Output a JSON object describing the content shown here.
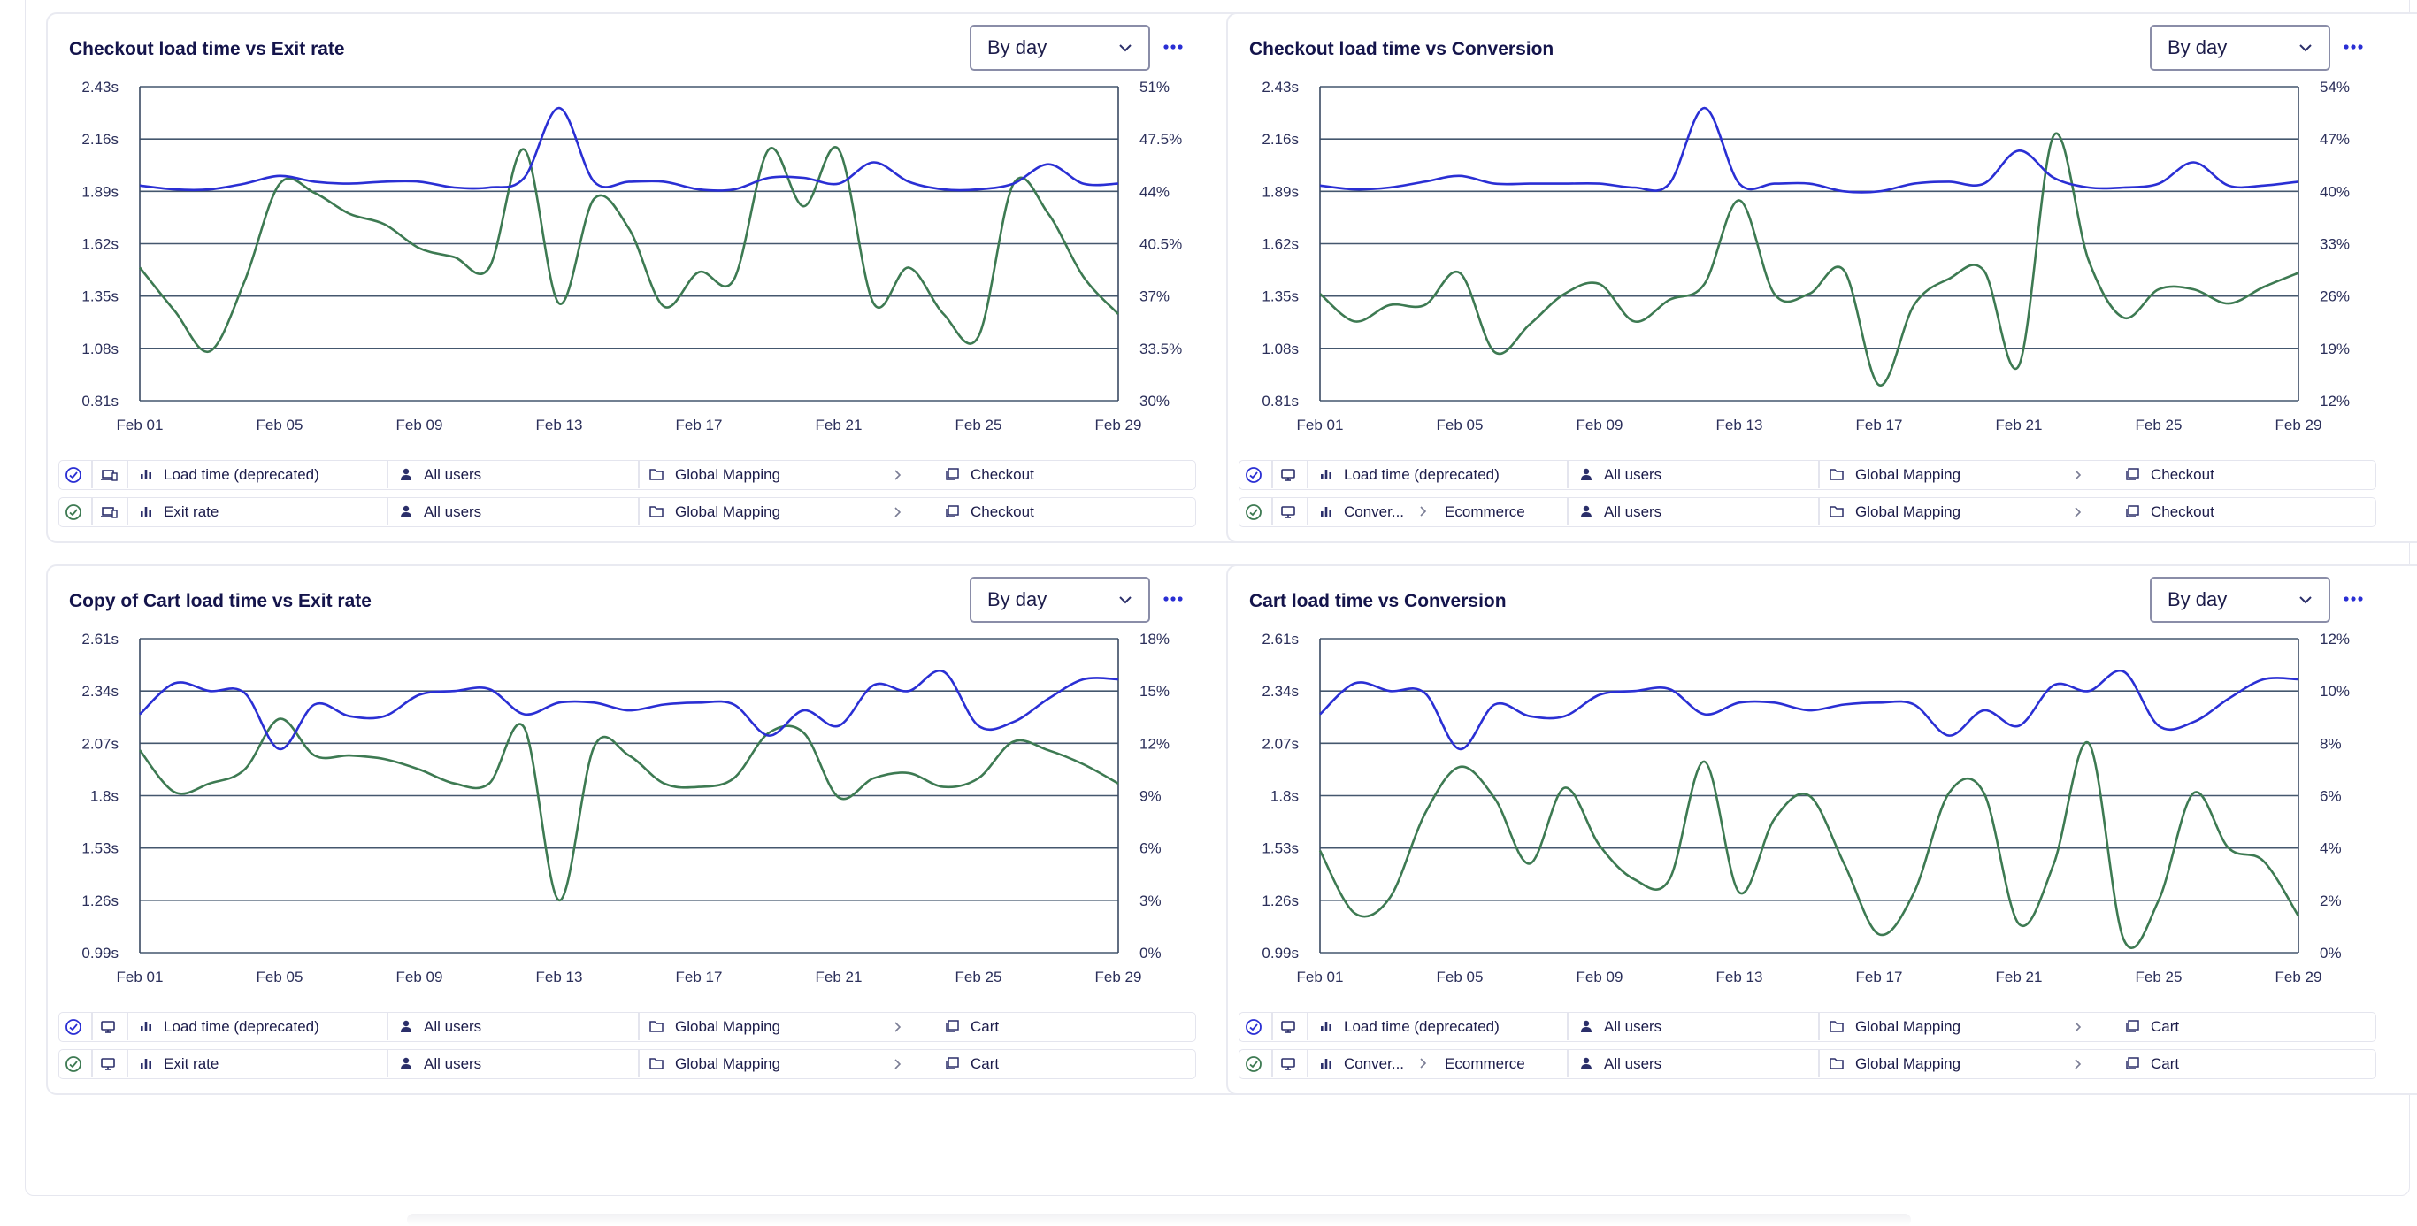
{
  "colors": {
    "blue": "#2a2fd4",
    "green": "#3d7a52",
    "grid": "#44576e",
    "axis": "#3a4a62"
  },
  "panels": [
    {
      "title": "Checkout load time vs Exit rate",
      "dropdown": "By day",
      "legend": [
        {
          "status": "blue",
          "device": "multi-device-icon",
          "metric": "Load time (deprecated)",
          "segment": "All users",
          "mapping": "Global Mapping",
          "page": "Checkout"
        },
        {
          "status": "green",
          "device": "multi-device-icon",
          "metric": "Exit rate",
          "segment": "All users",
          "mapping": "Global Mapping",
          "page": "Checkout"
        }
      ]
    },
    {
      "title": "Checkout load time vs Conversion",
      "dropdown": "By day",
      "legend": [
        {
          "status": "blue",
          "device": "desktop-icon",
          "metric": "Load time (deprecated)",
          "segment": "All users",
          "mapping": "Global Mapping",
          "page": "Checkout"
        },
        {
          "status": "green",
          "device": "desktop-icon",
          "metric": "Conver...",
          "goal": "Ecommerce",
          "segment": "All users",
          "mapping": "Global Mapping",
          "page": "Checkout"
        }
      ]
    },
    {
      "title": "Copy of Cart load time vs Exit rate",
      "dropdown": "By day",
      "legend": [
        {
          "status": "blue",
          "device": "desktop-icon",
          "metric": "Load time (deprecated)",
          "segment": "All users",
          "mapping": "Global Mapping",
          "page": "Cart"
        },
        {
          "status": "green",
          "device": "desktop-icon",
          "metric": "Exit rate",
          "segment": "All users",
          "mapping": "Global Mapping",
          "page": "Cart"
        }
      ]
    },
    {
      "title": "Cart load time vs Conversion",
      "dropdown": "By day",
      "legend": [
        {
          "status": "blue",
          "device": "desktop-icon",
          "metric": "Load time (deprecated)",
          "segment": "All users",
          "mapping": "Global Mapping",
          "page": "Cart"
        },
        {
          "status": "green",
          "device": "desktop-icon",
          "metric": "Conver...",
          "goal": "Ecommerce",
          "segment": "All users",
          "mapping": "Global Mapping",
          "page": "Cart"
        }
      ]
    }
  ],
  "chart_data": [
    {
      "type": "line",
      "title": "Checkout load time vs Exit rate",
      "x_ticks": [
        "Feb 01",
        "Feb 05",
        "Feb 09",
        "Feb 13",
        "Feb 17",
        "Feb 21",
        "Feb 25",
        "Feb 29"
      ],
      "x": [
        1,
        2,
        3,
        4,
        5,
        6,
        7,
        8,
        9,
        10,
        11,
        12,
        13,
        14,
        15,
        16,
        17,
        18,
        19,
        20,
        21,
        22,
        23,
        24,
        25,
        26,
        27,
        28,
        29
      ],
      "y_left": {
        "ticks": [
          "0.81s",
          "1.08s",
          "1.35s",
          "1.62s",
          "1.89s",
          "2.16s",
          "2.43s"
        ],
        "ylim": [
          0.81,
          2.43
        ]
      },
      "y_right": {
        "ticks": [
          "30%",
          "33.5%",
          "37%",
          "40.5%",
          "44%",
          "47.5%",
          "51%"
        ],
        "ylim": [
          30,
          51
        ]
      },
      "series": [
        {
          "name": "Load time (deprecated)",
          "axis": "left",
          "color": "blue",
          "values": [
            1.92,
            1.9,
            1.9,
            1.93,
            1.97,
            1.94,
            1.93,
            1.94,
            1.94,
            1.91,
            1.91,
            1.96,
            2.32,
            1.94,
            1.94,
            1.94,
            1.9,
            1.9,
            1.96,
            1.96,
            1.93,
            2.04,
            1.94,
            1.9,
            1.9,
            1.93,
            2.03,
            1.93,
            1.93
          ]
        },
        {
          "name": "Exit rate",
          "axis": "right",
          "color": "green",
          "values": [
            38.9,
            36.0,
            33.3,
            38.0,
            44.5,
            43.9,
            42.5,
            41.8,
            40.2,
            39.6,
            38.9,
            46.8,
            36.5,
            43.5,
            41.5,
            36.3,
            38.6,
            38.1,
            46.8,
            43.0,
            46.8,
            36.5,
            38.9,
            35.8,
            34.3,
            44.5,
            42.5,
            38.3,
            35.8
          ]
        }
      ]
    },
    {
      "type": "line",
      "title": "Checkout load time vs Conversion",
      "x_ticks": [
        "Feb 01",
        "Feb 05",
        "Feb 09",
        "Feb 13",
        "Feb 17",
        "Feb 21",
        "Feb 25",
        "Feb 29"
      ],
      "x": [
        1,
        2,
        3,
        4,
        5,
        6,
        7,
        8,
        9,
        10,
        11,
        12,
        13,
        14,
        15,
        16,
        17,
        18,
        19,
        20,
        21,
        22,
        23,
        24,
        25,
        26,
        27,
        28,
        29
      ],
      "y_left": {
        "ticks": [
          "0.81s",
          "1.08s",
          "1.35s",
          "1.62s",
          "1.89s",
          "2.16s",
          "2.43s"
        ],
        "ylim": [
          0.81,
          2.43
        ]
      },
      "y_right": {
        "ticks": [
          "12%",
          "19%",
          "26%",
          "33%",
          "40%",
          "47%",
          "54%"
        ],
        "ylim": [
          12,
          54
        ]
      },
      "series": [
        {
          "name": "Load time (deprecated)",
          "axis": "left",
          "color": "blue",
          "values": [
            1.92,
            1.9,
            1.91,
            1.94,
            1.97,
            1.93,
            1.93,
            1.93,
            1.93,
            1.91,
            1.93,
            2.32,
            1.93,
            1.93,
            1.93,
            1.89,
            1.89,
            1.93,
            1.94,
            1.93,
            2.1,
            1.96,
            1.91,
            1.91,
            1.93,
            2.04,
            1.92,
            1.92,
            1.94
          ]
        },
        {
          "name": "Conversion",
          "axis": "right",
          "color": "green",
          "values": [
            26.3,
            22.6,
            24.8,
            24.8,
            29.1,
            18.5,
            22.2,
            26.3,
            27.6,
            22.6,
            25.5,
            27.6,
            38.8,
            26.3,
            26.3,
            29.4,
            14.1,
            24.8,
            28.3,
            29.4,
            16.7,
            47.5,
            30.7,
            23.1,
            26.9,
            26.9,
            25.0,
            27.2,
            29.1
          ]
        }
      ]
    },
    {
      "type": "line",
      "title": "Copy of Cart load time vs Exit rate",
      "x_ticks": [
        "Feb 01",
        "Feb 05",
        "Feb 09",
        "Feb 13",
        "Feb 17",
        "Feb 21",
        "Feb 25",
        "Feb 29"
      ],
      "x": [
        1,
        2,
        3,
        4,
        5,
        6,
        7,
        8,
        9,
        10,
        11,
        12,
        13,
        14,
        15,
        16,
        17,
        18,
        19,
        20,
        21,
        22,
        23,
        24,
        25,
        26,
        27,
        28,
        29
      ],
      "y_left": {
        "ticks": [
          "0.99s",
          "1.26s",
          "1.53s",
          "1.8s",
          "2.07s",
          "2.34s",
          "2.61s"
        ],
        "ylim": [
          0.99,
          2.61
        ]
      },
      "y_right": {
        "ticks": [
          "0%",
          "3%",
          "6%",
          "9%",
          "12%",
          "15%",
          "18%"
        ],
        "ylim": [
          0,
          18
        ]
      },
      "series": [
        {
          "name": "Load time (deprecated)",
          "axis": "left",
          "color": "blue",
          "values": [
            2.22,
            2.38,
            2.34,
            2.33,
            2.04,
            2.27,
            2.21,
            2.21,
            2.32,
            2.34,
            2.35,
            2.22,
            2.28,
            2.28,
            2.24,
            2.27,
            2.28,
            2.27,
            2.11,
            2.24,
            2.16,
            2.37,
            2.34,
            2.44,
            2.16,
            2.18,
            2.3,
            2.4,
            2.4
          ]
        },
        {
          "name": "Exit rate",
          "axis": "right",
          "color": "green",
          "values": [
            11.6,
            9.2,
            9.7,
            10.5,
            13.4,
            11.3,
            11.3,
            11.1,
            10.5,
            9.7,
            9.7,
            12.9,
            3.0,
            11.8,
            11.3,
            9.7,
            9.5,
            10.0,
            12.6,
            12.6,
            8.9,
            10.0,
            10.3,
            9.5,
            10.0,
            12.1,
            11.6,
            10.8,
            9.7
          ]
        }
      ]
    },
    {
      "type": "line",
      "title": "Cart load time vs Conversion",
      "x_ticks": [
        "Feb 01",
        "Feb 05",
        "Feb 09",
        "Feb 13",
        "Feb 17",
        "Feb 21",
        "Feb 25",
        "Feb 29"
      ],
      "x": [
        1,
        2,
        3,
        4,
        5,
        6,
        7,
        8,
        9,
        10,
        11,
        12,
        13,
        14,
        15,
        16,
        17,
        18,
        19,
        20,
        21,
        22,
        23,
        24,
        25,
        26,
        27,
        28,
        29
      ],
      "y_left": {
        "ticks": [
          "0.99s",
          "1.26s",
          "1.53s",
          "1.8s",
          "2.07s",
          "2.34s",
          "2.61s"
        ],
        "ylim": [
          0.99,
          2.61
        ]
      },
      "y_right": {
        "ticks": [
          "0%",
          "2%",
          "4%",
          "6%",
          "8%",
          "10%",
          "12%"
        ],
        "ylim": [
          0,
          12
        ]
      },
      "series": [
        {
          "name": "Load time (deprecated)",
          "axis": "left",
          "color": "blue",
          "values": [
            2.22,
            2.38,
            2.34,
            2.33,
            2.04,
            2.27,
            2.21,
            2.21,
            2.32,
            2.34,
            2.35,
            2.22,
            2.28,
            2.28,
            2.24,
            2.27,
            2.28,
            2.27,
            2.11,
            2.24,
            2.16,
            2.37,
            2.34,
            2.44,
            2.16,
            2.18,
            2.3,
            2.4,
            2.4
          ]
        },
        {
          "name": "Conversion",
          "axis": "right",
          "color": "green",
          "values": [
            3.9,
            1.5,
            2.1,
            5.3,
            7.1,
            5.9,
            3.4,
            6.3,
            4.1,
            2.8,
            2.8,
            7.3,
            2.3,
            5.1,
            6.0,
            3.4,
            0.7,
            2.3,
            6.1,
            6.1,
            1.1,
            3.4,
            8.0,
            0.5,
            2.0,
            6.1,
            4.0,
            3.5,
            1.4
          ]
        }
      ]
    }
  ]
}
